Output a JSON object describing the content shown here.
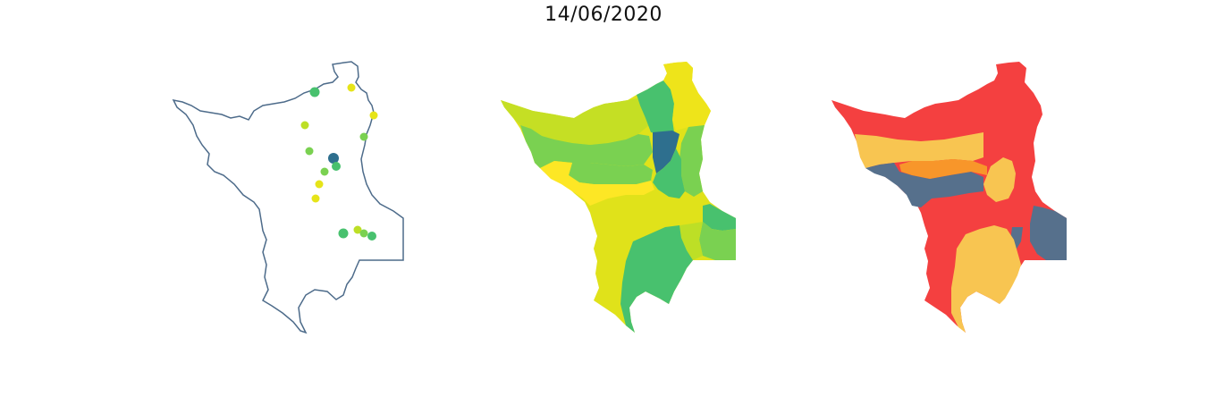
{
  "figure": {
    "title": "14/06/2020"
  },
  "colors": {
    "outline": "#4d6b8a",
    "dark_blue": "#2e6f8e",
    "green": "#48c16e",
    "light_green": "#7ad151",
    "yellow_green": "#bddf26",
    "yellow": "#e6e419",
    "bright_yellow": "#fde725",
    "red": "#f44040",
    "light_orange": "#f8c551",
    "orange": "#f8962a",
    "slate": "#56708c"
  },
  "panels": [
    {
      "name": "station-points-map"
    },
    {
      "name": "basin-index-map"
    },
    {
      "name": "basin-category-map"
    }
  ]
}
